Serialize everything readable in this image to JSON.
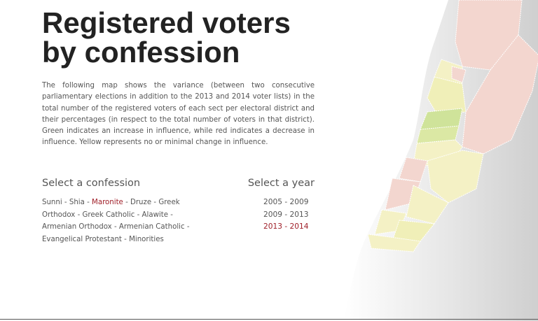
{
  "header": {
    "title_lines": [
      "Registered voters",
      "by confession"
    ],
    "description": "The following map shows the variance (between two consecutive parliamentary elections in addition to the 2013 and 2014 voter lists) in the total number of the registered voters of each sect per electoral district and their percentages (in respect to the total number of voters in that district). Green indicates an increase in influence, while red indicates a decrease in influence. Yellow represents no or minimal change in influence."
  },
  "confession_selector": {
    "heading": "Select a confession",
    "separator": "-",
    "options": [
      "Sunni",
      "Shia",
      "Maronite",
      "Druze",
      "Greek Orthodox",
      "Greek Catholic",
      "Alawite",
      "Armenian Orthodox",
      "Armenian Catholic",
      "Evangelical Protestant",
      "Minorities"
    ],
    "selected": 2
  },
  "year_selector": {
    "heading": "Select a year",
    "options": [
      "2005 - 2009",
      "2009 - 2013",
      "2013 - 2014"
    ],
    "selected": 2
  }
}
